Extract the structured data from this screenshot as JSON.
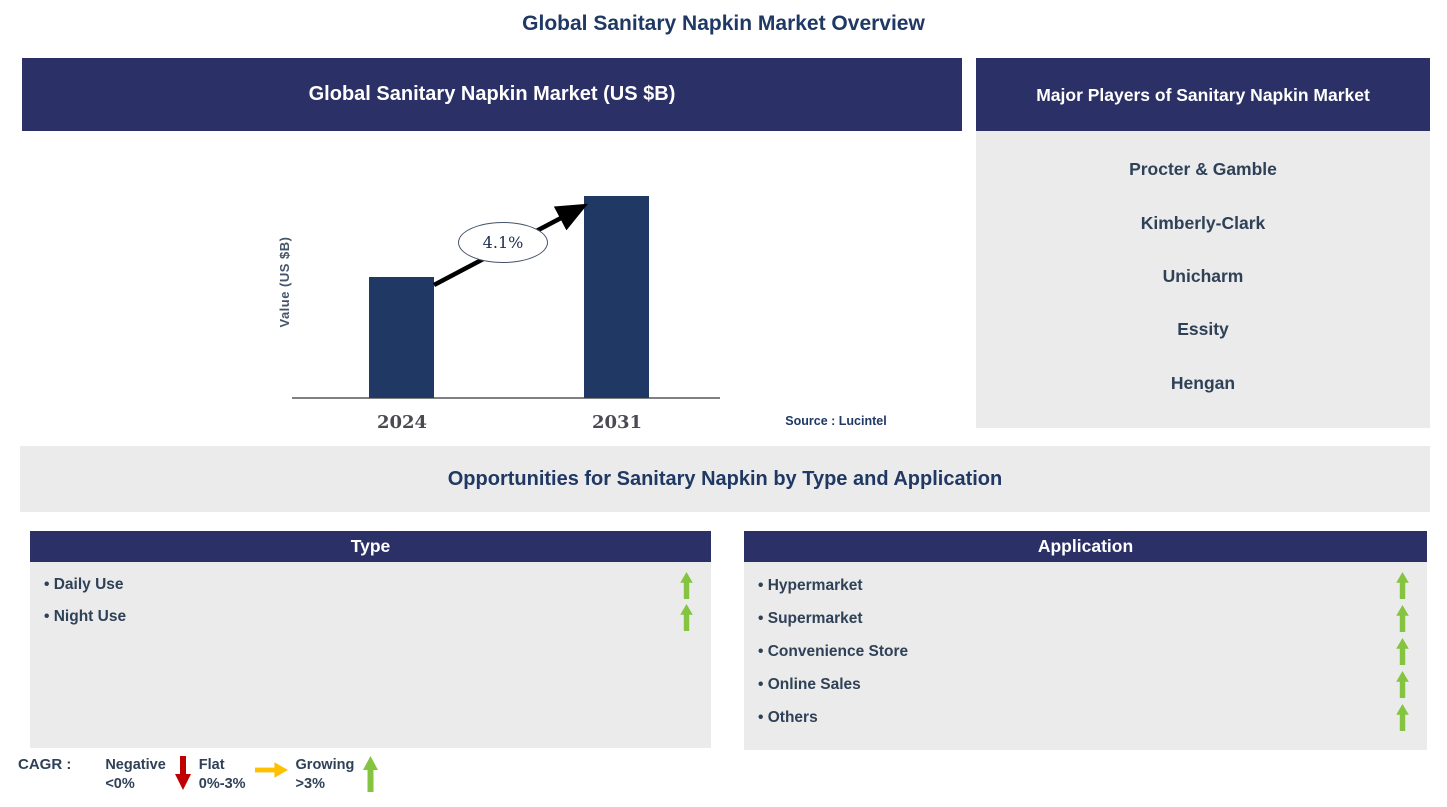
{
  "page": {
    "title": "Global Sanitary Napkin Market Overview"
  },
  "chart_panel": {
    "header": "Global Sanitary Napkin Market (US $B)"
  },
  "chart_data": {
    "type": "bar",
    "title": "Global Sanitary Napkin Market (US $B)",
    "categories": [
      "2024",
      "2031"
    ],
    "values_relative": [
      0.6,
      1.0
    ],
    "ylabel": "Value (US $B)",
    "xlabel": "",
    "growth_label": "4.1%",
    "source": "Source : Lucintel",
    "bar_color": "#1F3864",
    "legend_position": "none",
    "grid": false,
    "notes": "No numeric y-axis shown; bars depict market growth from 2024 to 2031 with CAGR annotation 4.1%"
  },
  "players_panel": {
    "header": "Major Players of Sanitary Napkin Market",
    "players": [
      "Procter & Gamble",
      "Kimberly-Clark",
      "Unicharm",
      "Essity",
      "Hengan"
    ]
  },
  "opportunities": {
    "title": "Opportunities for Sanitary Napkin by Type and Application"
  },
  "type_panel": {
    "header": "Type",
    "items": [
      {
        "label": "Daily Use",
        "trend": "growing"
      },
      {
        "label": "Night Use",
        "trend": "growing"
      }
    ]
  },
  "application_panel": {
    "header": "Application",
    "items": [
      {
        "label": "Hypermarket",
        "trend": "growing"
      },
      {
        "label": "Supermarket",
        "trend": "growing"
      },
      {
        "label": "Convenience Store",
        "trend": "growing"
      },
      {
        "label": "Online Sales",
        "trend": "growing"
      },
      {
        "label": "Others",
        "trend": "growing"
      }
    ]
  },
  "legend": {
    "label": "CAGR :",
    "entries": [
      {
        "name": "Negative",
        "range": "<0%",
        "direction": "down",
        "color": "#C00000"
      },
      {
        "name": "Flat",
        "range": "0%-3%",
        "direction": "right",
        "color": "#FFC000"
      },
      {
        "name": "Growing",
        "range": ">3%",
        "direction": "up",
        "color": "#85C441"
      }
    ]
  },
  "colors": {
    "navy_header": "#2B3166",
    "bar_navy": "#1F3864",
    "panel_gray": "#EBEBEB",
    "title_navy": "#1F3864",
    "item_text": "#2F4157",
    "green_arrow": "#85C441",
    "red_arrow": "#C00000",
    "orange_arrow": "#FFC000"
  }
}
